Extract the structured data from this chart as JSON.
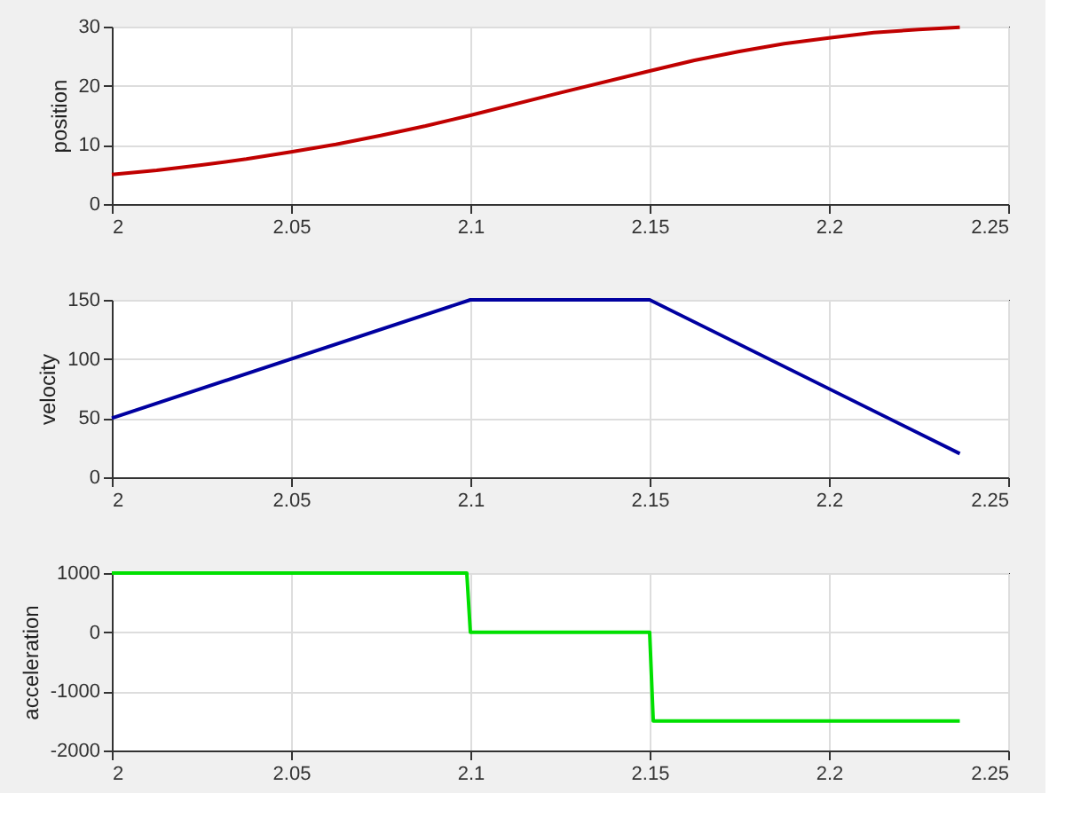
{
  "chart_data": [
    {
      "type": "line",
      "ylabel": "position",
      "x": [
        2,
        2.0125,
        2.025,
        2.0375,
        2.05,
        2.0625,
        2.075,
        2.0875,
        2.1,
        2.125,
        2.15,
        2.1625,
        2.175,
        2.1875,
        2.2,
        2.2125,
        2.225,
        2.2365
      ],
      "series": [
        {
          "color": "#c00000",
          "values": [
            5,
            5.7,
            6.6,
            7.6,
            8.8,
            10.1,
            11.6,
            13.2,
            15,
            18.8,
            22.5,
            24.3,
            25.8,
            27.1,
            28.1,
            29.0,
            29.5,
            29.9
          ]
        }
      ],
      "xlim": [
        2,
        2.25
      ],
      "xticks": [
        2,
        2.05,
        2.1,
        2.15,
        2.2,
        2.25
      ],
      "ylim": [
        0,
        30
      ],
      "yticks": [
        0,
        10,
        20,
        30
      ],
      "grid": true
    },
    {
      "type": "line",
      "ylabel": "velocity",
      "x": [
        2,
        2.1,
        2.15,
        2.2365
      ],
      "series": [
        {
          "color": "#0000a0",
          "values": [
            50,
            150,
            150,
            20
          ]
        }
      ],
      "xlim": [
        2,
        2.25
      ],
      "xticks": [
        2,
        2.05,
        2.1,
        2.15,
        2.2,
        2.25
      ],
      "ylim": [
        0,
        150
      ],
      "yticks": [
        0,
        50,
        100,
        150
      ],
      "grid": true
    },
    {
      "type": "line",
      "ylabel": "acceleration",
      "x": [
        2,
        2.099,
        2.1,
        2.15,
        2.151,
        2.2365
      ],
      "series": [
        {
          "color": "#00e000",
          "values": [
            1000,
            1000,
            0,
            0,
            -1500,
            -1500
          ]
        }
      ],
      "xlim": [
        2,
        2.25
      ],
      "xticks": [
        2,
        2.05,
        2.1,
        2.15,
        2.2,
        2.25
      ],
      "ylim": [
        -2000,
        1000
      ],
      "yticks": [
        -2000,
        -1000,
        0,
        1000
      ],
      "grid": true
    }
  ]
}
